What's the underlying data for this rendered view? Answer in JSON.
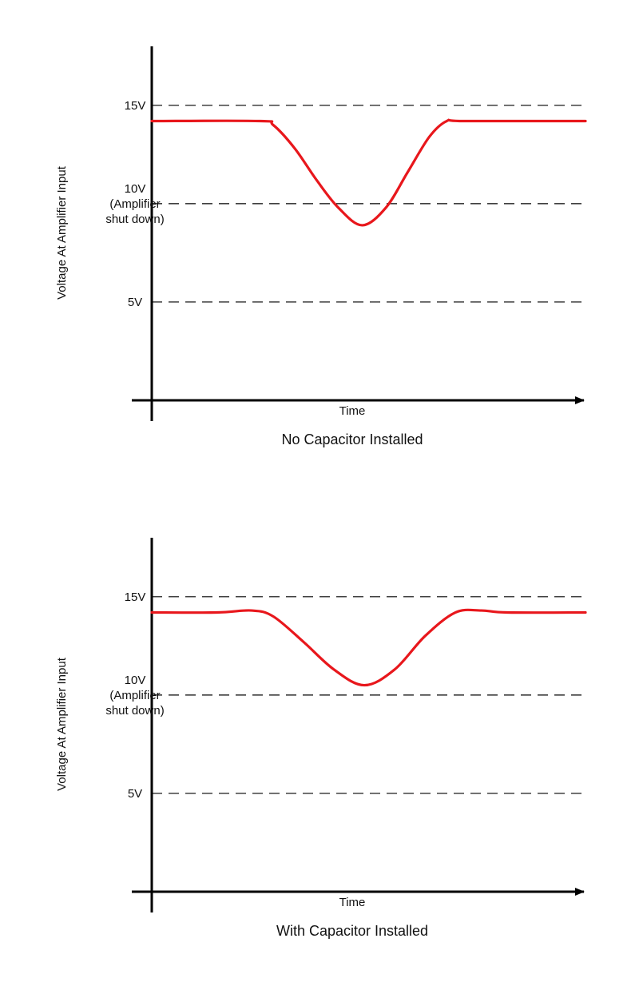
{
  "colors": {
    "curve": "#e8171c",
    "axis": "#000000",
    "dashed": "#000000"
  },
  "chart_data": [
    {
      "type": "line",
      "title": "No Capacitor Installed",
      "xlabel": "Time",
      "ylabel": "Voltage At Amplifier Input",
      "ylim": [
        0,
        18
      ],
      "yticks": [
        {
          "value": 15,
          "lines": [
            "15V"
          ]
        },
        {
          "value": 10,
          "lines": [
            "10V",
            "(Amplifier",
            "shut down)"
          ]
        },
        {
          "value": 5,
          "lines": [
            "5V"
          ]
        }
      ],
      "grid_dashed": [
        15,
        10,
        5
      ],
      "x": [
        0,
        0.25,
        0.28,
        0.33,
        0.38,
        0.43,
        0.485,
        0.54,
        0.59,
        0.64,
        0.68,
        0.72,
        1.0
      ],
      "y": [
        14.2,
        14.2,
        14.0,
        12.8,
        11.2,
        9.8,
        8.9,
        9.8,
        11.6,
        13.4,
        14.2,
        14.2,
        14.2
      ]
    },
    {
      "type": "line",
      "title": "With Capacitor Installed",
      "xlabel": "Time",
      "ylabel": "Voltage At Amplifier Input",
      "ylim": [
        0,
        18
      ],
      "yticks": [
        {
          "value": 15,
          "lines": [
            "15V"
          ]
        },
        {
          "value": 10,
          "lines": [
            "10V",
            "(Amplifier",
            "shut down)"
          ]
        },
        {
          "value": 5,
          "lines": [
            "5V"
          ]
        }
      ],
      "grid_dashed": [
        15,
        10,
        5
      ],
      "x": [
        0,
        0.15,
        0.23,
        0.28,
        0.35,
        0.42,
        0.49,
        0.56,
        0.63,
        0.7,
        0.76,
        0.82,
        1.0
      ],
      "y": [
        14.2,
        14.2,
        14.3,
        14.0,
        12.7,
        11.3,
        10.5,
        11.3,
        13.0,
        14.2,
        14.3,
        14.2,
        14.2
      ]
    }
  ]
}
